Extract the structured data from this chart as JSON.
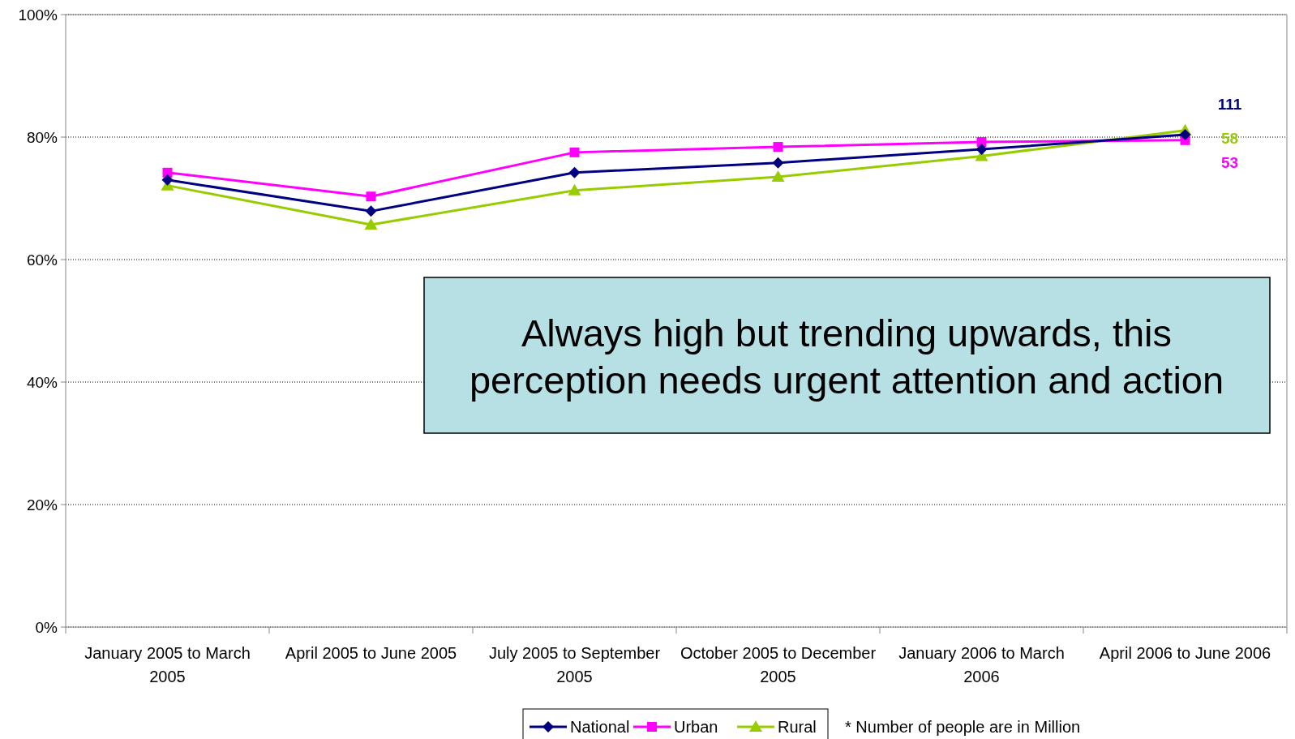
{
  "chart_data": {
    "type": "line",
    "categories": [
      "January 2005 to March 2005",
      "April 2005 to June 2005",
      "July 2005 to September 2005",
      "October 2005 to December 2005",
      "January 2006 to March 2006",
      "April 2006 to June 2006"
    ],
    "series": [
      {
        "name": "National",
        "color": "#000080",
        "marker": "diamond",
        "values": [
          73.0,
          67.9,
          74.2,
          75.8,
          78.0,
          80.4
        ]
      },
      {
        "name": "Urban",
        "color": "#ff00ff",
        "marker": "square",
        "values": [
          74.2,
          70.3,
          77.5,
          78.4,
          79.2,
          79.5
        ]
      },
      {
        "name": "Rural",
        "color": "#99cc00",
        "marker": "triangle",
        "values": [
          72.1,
          65.7,
          71.3,
          73.5,
          76.9,
          81.1
        ]
      }
    ],
    "ylim": [
      0,
      100
    ],
    "yticks": [
      {
        "value": 0,
        "label": "0%"
      },
      {
        "value": 20,
        "label": "20%"
      },
      {
        "value": 40,
        "label": "40%"
      },
      {
        "value": 60,
        "label": "60%"
      },
      {
        "value": 80,
        "label": "80%"
      },
      {
        "value": 100,
        "label": "100%"
      }
    ],
    "grid": "y",
    "legend": "bottom",
    "line_style": "solid",
    "annotations": [
      {
        "text": "111",
        "x": "April 2006 to June 2006",
        "y": 80.4
      },
      {
        "text": "58",
        "x": "April 2006 to June 2006",
        "y": 81.1
      },
      {
        "text": "53",
        "x": "April 2006 to June 2006",
        "y": 79.5
      },
      "Always high but trending upwards, this perception needs urgent attention and action",
      "* Number of people are in Million"
    ]
  }
}
